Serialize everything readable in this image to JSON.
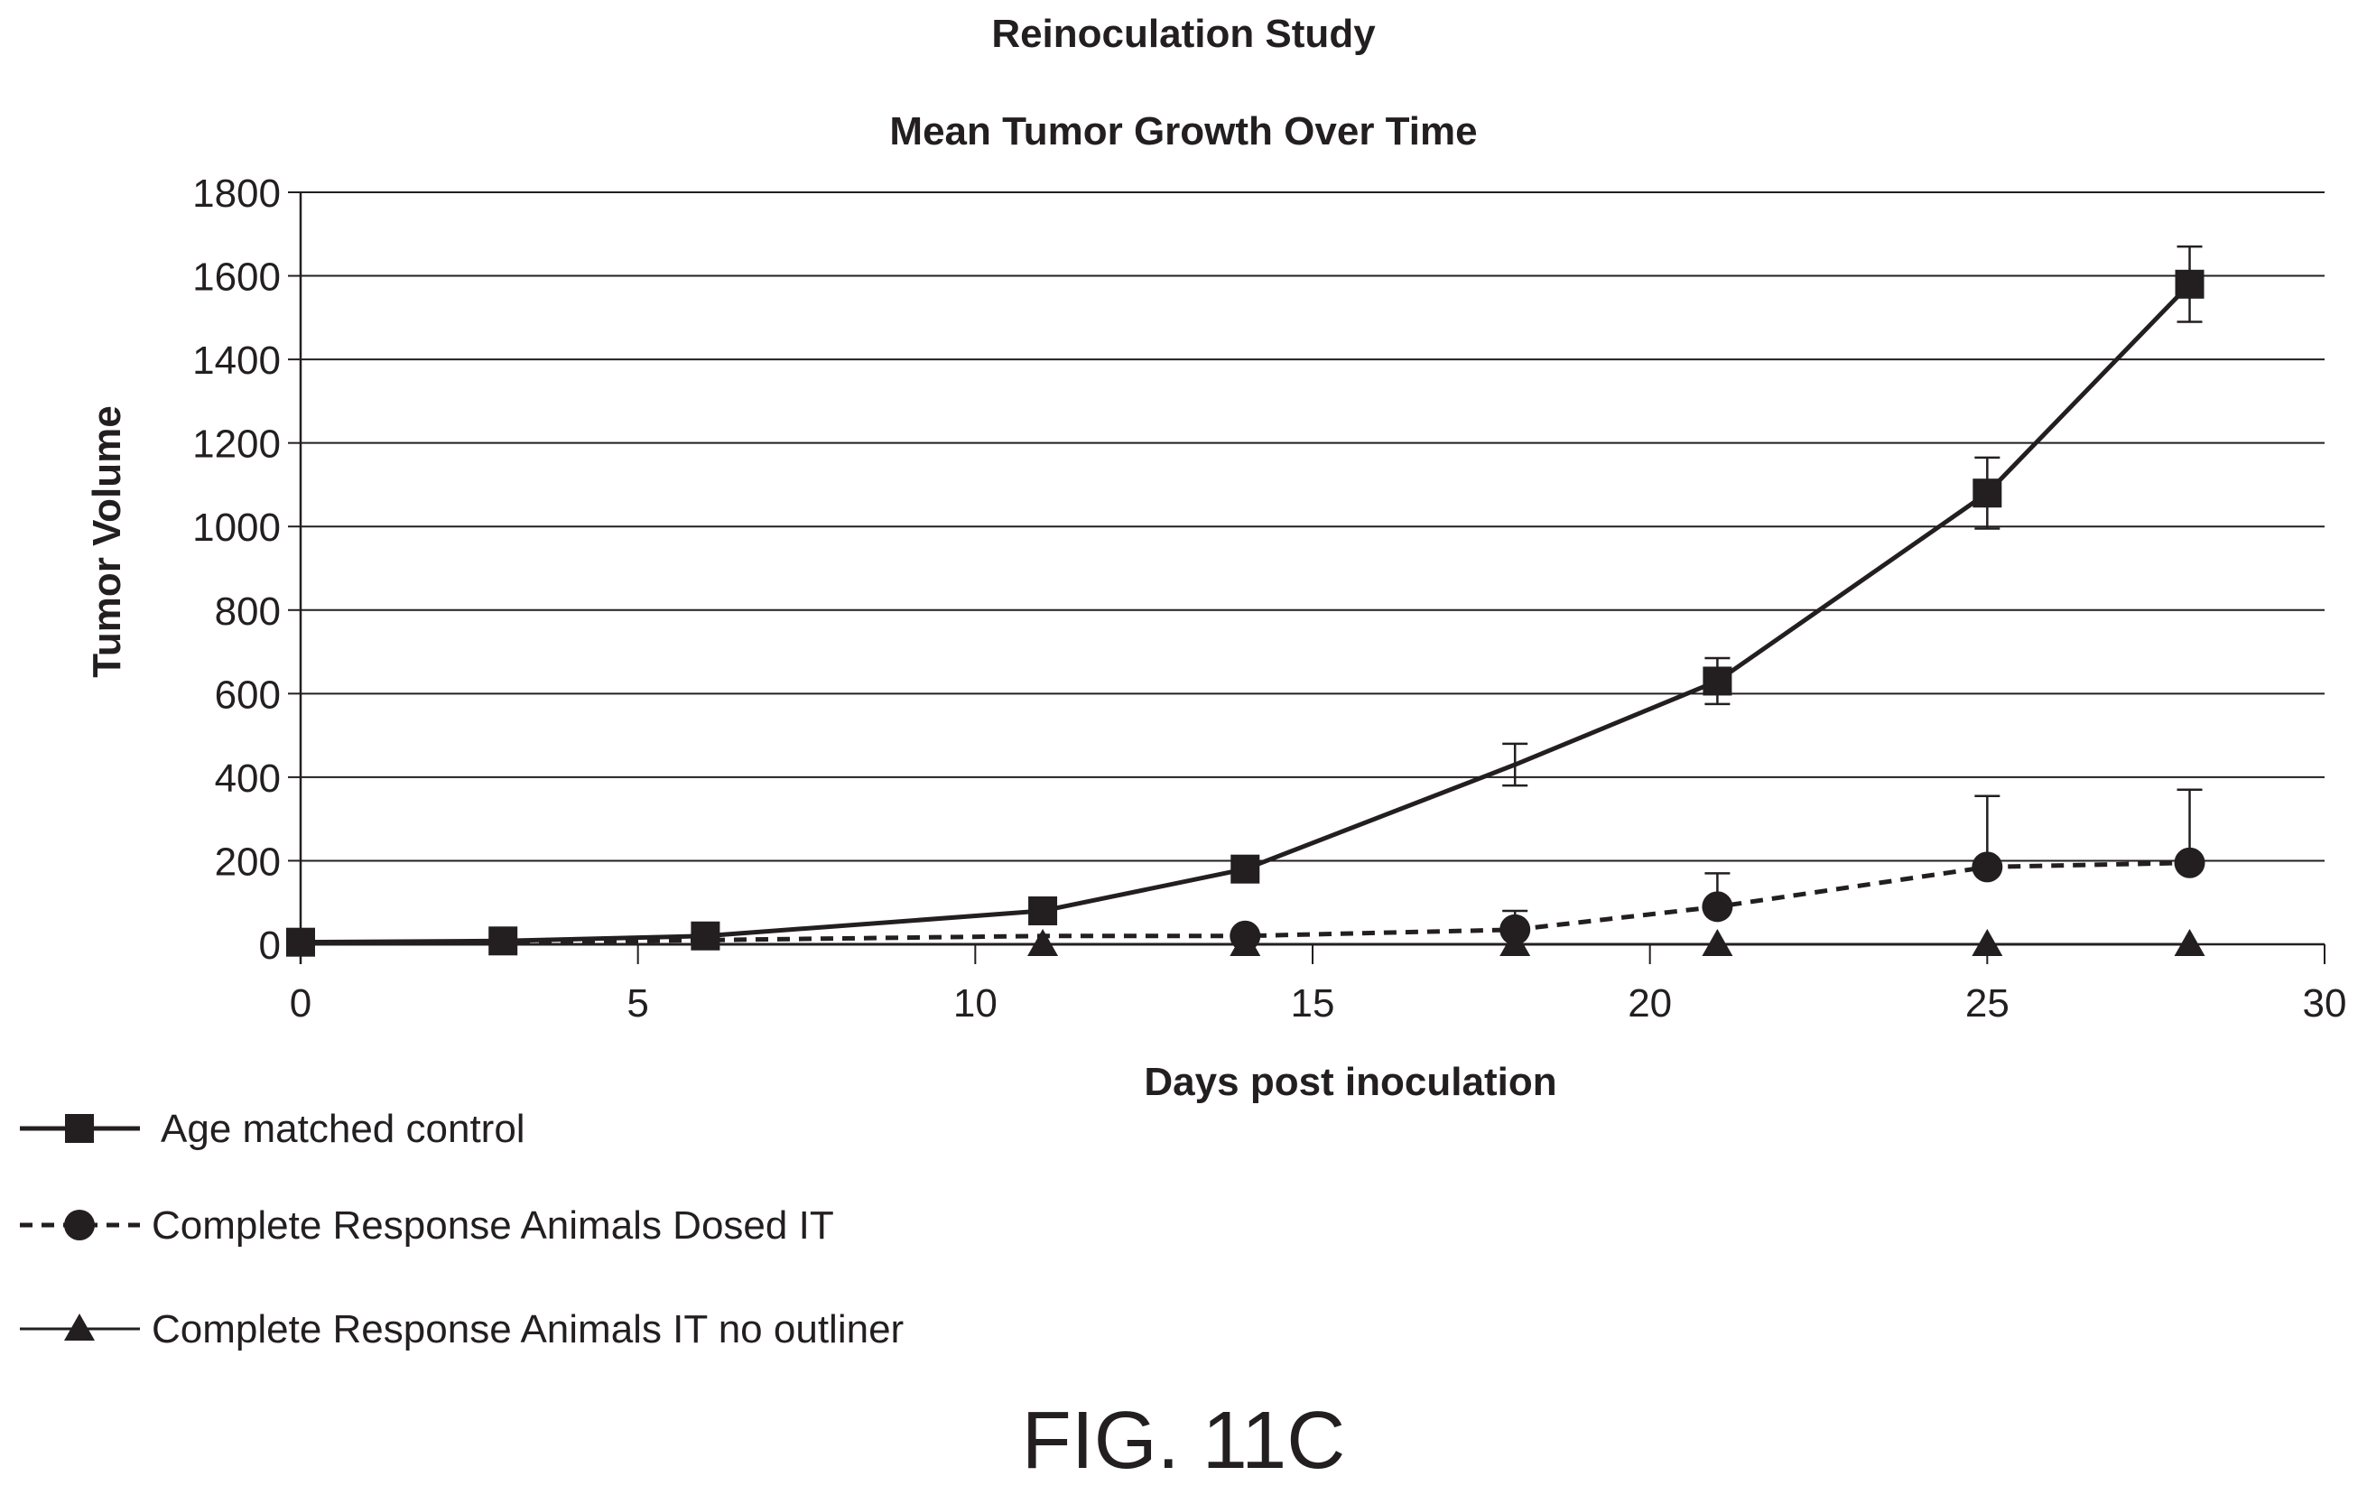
{
  "figure_label": "FIG. 11C",
  "chart_data": {
    "type": "line",
    "title": "Reinoculation Study",
    "subtitle": "Mean Tumor Growth Over Time",
    "xlabel": "Days post inoculation",
    "ylabel": "Tumor Volume",
    "xlim": [
      0,
      30
    ],
    "ylim": [
      0,
      1800
    ],
    "xticks": [
      0,
      5,
      10,
      15,
      20,
      25,
      30
    ],
    "yticks": [
      0,
      200,
      400,
      600,
      800,
      1000,
      1200,
      1400,
      1600,
      1800
    ],
    "grid": "horizontal",
    "legend_position": "bottom-left",
    "series": [
      {
        "name": "Age matched control",
        "marker": "square",
        "line_style": "solid",
        "line_weight": "bold",
        "color": "#231f20",
        "x": [
          0,
          3,
          6,
          11,
          14,
          18,
          21,
          25,
          28
        ],
        "y": [
          5,
          8,
          20,
          80,
          180,
          430,
          630,
          1080,
          1580
        ],
        "error": [
          0,
          0,
          0,
          0,
          0,
          50,
          55,
          85,
          90
        ],
        "marker_visible": [
          true,
          true,
          true,
          true,
          true,
          false,
          true,
          true,
          true
        ]
      },
      {
        "name": "Complete Response Animals Dosed IT",
        "marker": "circle",
        "line_style": "dashed",
        "line_weight": "bold",
        "color": "#231f20",
        "x": [
          0,
          3,
          6,
          11,
          14,
          18,
          21,
          25,
          28
        ],
        "y": [
          5,
          5,
          10,
          20,
          20,
          35,
          90,
          185,
          195
        ],
        "error": [
          0,
          0,
          0,
          0,
          0,
          45,
          80,
          170,
          175
        ],
        "marker_visible": [
          false,
          false,
          false,
          false,
          true,
          true,
          true,
          true,
          true
        ]
      },
      {
        "name": "Complete Response Animals IT no outliner",
        "marker": "triangle",
        "line_style": "solid",
        "line_weight": "thin",
        "color": "#231f20",
        "x": [
          0,
          3,
          6,
          11,
          14,
          18,
          21,
          25,
          28
        ],
        "y": [
          0,
          0,
          0,
          0,
          0,
          0,
          0,
          0,
          0
        ],
        "error": [
          0,
          0,
          0,
          0,
          0,
          0,
          0,
          0,
          0
        ],
        "marker_visible": [
          false,
          false,
          false,
          true,
          true,
          true,
          true,
          true,
          true
        ]
      }
    ]
  }
}
